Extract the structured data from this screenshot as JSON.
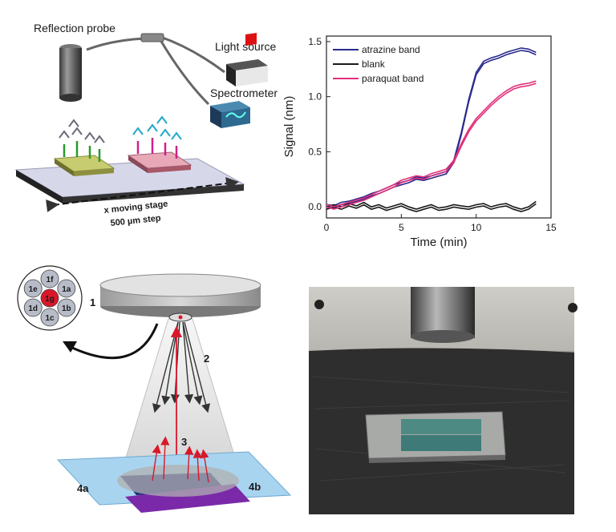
{
  "setup_diagram": {
    "probe_label": "Reflection probe",
    "light_source_label": "Light source",
    "spectrometer_label": "Spectrometer",
    "stage_label": "x moving stage",
    "step_label": "500 µm step"
  },
  "probe_diagram": {
    "fibers": [
      "1a",
      "1b",
      "1c",
      "1d",
      "1e",
      "1f",
      "1g"
    ],
    "probe_number": "1",
    "reflected_light_number": "2",
    "incident_light_number": "3",
    "band_left_label": "4a",
    "band_right_label": "4b"
  },
  "colors": {
    "atrazine": "#2a2a8c",
    "blank": "#1a1a1a",
    "paraquat": "#e0307a"
  },
  "chart_data": {
    "type": "line",
    "xlabel": "Time (min)",
    "ylabel": "Signal (nm)",
    "xlim": [
      0,
      15
    ],
    "ylim": [
      -0.1,
      1.55
    ],
    "xticks": [
      "0",
      "5",
      "10",
      "15"
    ],
    "yticks": [
      "0.0",
      "0.5",
      "1.0",
      "1.5"
    ],
    "legend_position": "top-left",
    "grid": false,
    "series": [
      {
        "name": "atrazine band",
        "color": "#2a2a8c",
        "x": [
          0,
          0.5,
          1,
          1.5,
          2,
          2.5,
          3,
          3.5,
          4,
          4.5,
          5,
          5.5,
          6,
          6.5,
          7,
          7.5,
          8,
          8.5,
          9,
          9.5,
          10,
          10.5,
          11,
          11.5,
          12,
          12.5,
          13,
          13.5,
          14
        ],
        "y": [
          0.0,
          -0.01,
          0.02,
          0.03,
          0.05,
          0.07,
          0.1,
          0.12,
          0.15,
          0.18,
          0.2,
          0.22,
          0.25,
          0.24,
          0.26,
          0.28,
          0.3,
          0.4,
          0.65,
          0.95,
          1.2,
          1.3,
          1.33,
          1.35,
          1.38,
          1.4,
          1.42,
          1.41,
          1.38
        ]
      },
      {
        "name": "blank",
        "color": "#1a1a1a",
        "x": [
          0,
          0.5,
          1,
          1.5,
          2,
          2.5,
          3,
          3.5,
          4,
          4.5,
          5,
          5.5,
          6,
          6.5,
          7,
          7.5,
          8,
          8.5,
          9,
          9.5,
          10,
          10.5,
          11,
          11.5,
          12,
          12.5,
          13,
          13.5,
          14
        ],
        "y": [
          0.0,
          0.02,
          0.0,
          0.03,
          0.01,
          0.04,
          0.0,
          0.02,
          -0.01,
          0.01,
          0.03,
          0.0,
          -0.02,
          0.0,
          0.02,
          -0.01,
          0.0,
          0.02,
          0.01,
          0.0,
          0.02,
          0.03,
          0.0,
          0.02,
          0.03,
          0.0,
          -0.02,
          0.0,
          0.05
        ]
      },
      {
        "name": "paraquat band",
        "color": "#e0307a",
        "x": [
          0,
          0.5,
          1,
          1.5,
          2,
          2.5,
          3,
          3.5,
          4,
          4.5,
          5,
          5.5,
          6,
          6.5,
          7,
          7.5,
          8,
          8.5,
          9,
          9.5,
          10,
          10.5,
          11,
          11.5,
          12,
          12.5,
          13,
          13.5,
          14
        ],
        "y": [
          0.0,
          -0.02,
          0.0,
          0.02,
          0.04,
          0.06,
          0.09,
          0.12,
          0.15,
          0.18,
          0.22,
          0.24,
          0.26,
          0.25,
          0.28,
          0.3,
          0.32,
          0.4,
          0.55,
          0.68,
          0.78,
          0.85,
          0.92,
          0.98,
          1.03,
          1.07,
          1.09,
          1.1,
          1.12
        ]
      }
    ]
  }
}
